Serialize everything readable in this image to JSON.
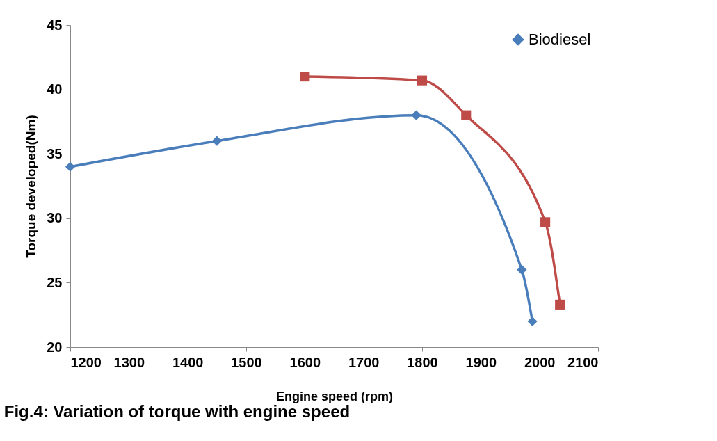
{
  "chart_data": {
    "type": "line",
    "title": "Fig.4:  Variation of torque with engine speed",
    "xlabel": "Engine speed (rpm)",
    "ylabel": "Torque developed(Nm)",
    "xlim": [
      1200,
      2100
    ],
    "xticks": [
      1200,
      1300,
      1400,
      1500,
      1600,
      1700,
      1800,
      1900,
      2000,
      2100
    ],
    "ylim": [
      20,
      45
    ],
    "yticks": [
      20,
      25,
      30,
      35,
      40,
      45
    ],
    "grid": false,
    "legend": "top right",
    "series": [
      {
        "name": "Biodiesel",
        "color": "#4a7ebb",
        "marker": "diamond",
        "x": [
          1200,
          1450,
          1790,
          1970,
          1988
        ],
        "values": [
          34,
          36,
          38,
          26,
          22
        ]
      },
      {
        "color": "#be4b48",
        "marker": "square",
        "x": [
          1600,
          1800,
          1875,
          2010,
          2035
        ],
        "values": [
          41,
          40.7,
          38,
          29.7,
          23.3
        ]
      }
    ]
  }
}
